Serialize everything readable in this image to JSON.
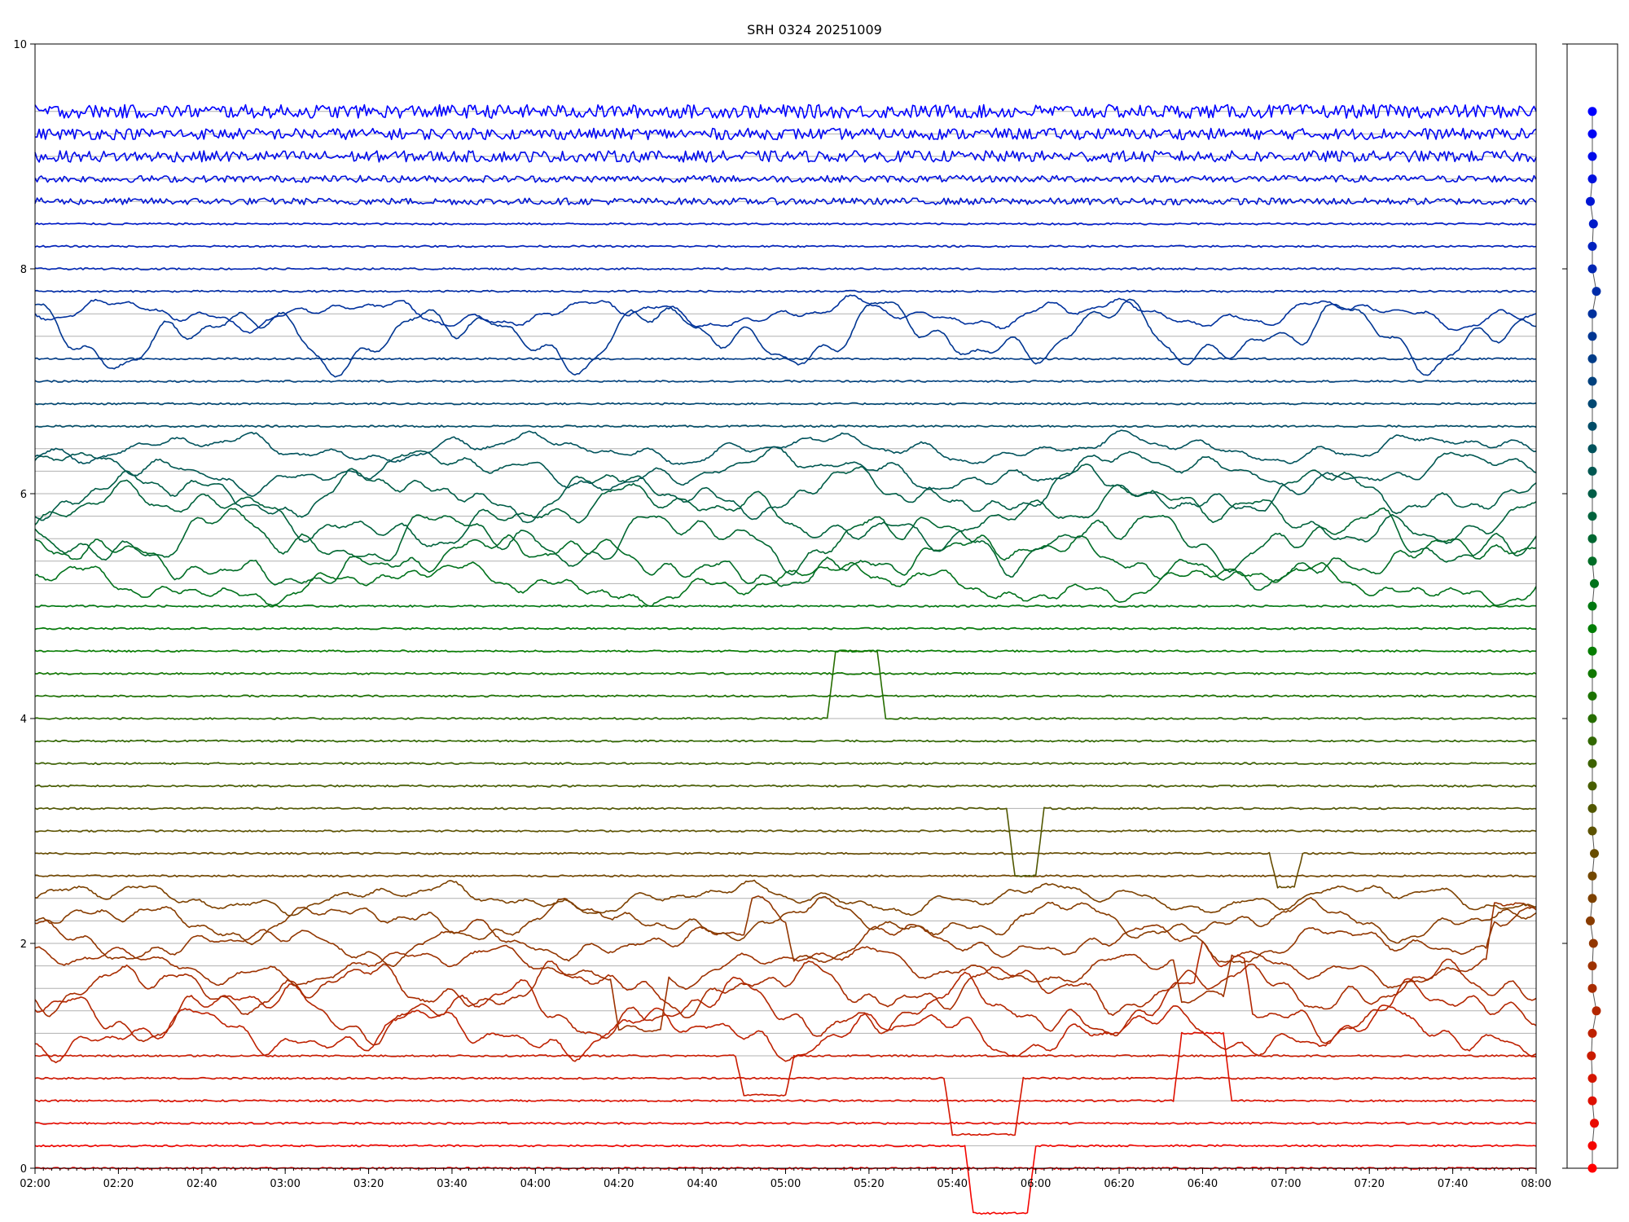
{
  "chart_data": {
    "type": "line",
    "title": "SRH 0324 20251009",
    "xlabel": "",
    "ylabel": "",
    "x_range": [
      "02:00",
      "08:00"
    ],
    "x_ticks": [
      "02:00",
      "02:20",
      "02:40",
      "03:00",
      "03:20",
      "03:40",
      "04:00",
      "04:20",
      "04:40",
      "05:00",
      "05:20",
      "05:40",
      "06:00",
      "06:20",
      "06:40",
      "07:00",
      "07:20",
      "07:40",
      "08:00"
    ],
    "ylim": [
      0,
      10
    ],
    "y_ticks": [
      0,
      2,
      4,
      6,
      8,
      10
    ],
    "grid": "horizontal",
    "channel_count": 48,
    "channel_spacing": 0.2,
    "color_start": "#ff0000",
    "color_mid": "#008000",
    "color_end": "#0000ff",
    "side_panel": {
      "type": "scatter",
      "description_source": "marker column showing per-channel offset, same y scale",
      "x_offsets": [
        0,
        0,
        0.1,
        0,
        0,
        -0.05,
        0,
        0.2,
        0,
        0,
        0.05,
        -0.1,
        0,
        0,
        0.1,
        0,
        0,
        0,
        0,
        0,
        0,
        0,
        0,
        0,
        0,
        0,
        0.1,
        0,
        0,
        0,
        0,
        0,
        0,
        0,
        0,
        0,
        0,
        0,
        0,
        0.2,
        0,
        0,
        0.05,
        -0.1,
        0,
        0,
        0,
        0
      ]
    },
    "events": [
      {
        "channel": 1,
        "start": "05:45",
        "end": "05:58",
        "depth": -0.6,
        "kind": "dip"
      },
      {
        "channel": 3,
        "start": "06:35",
        "end": "06:45",
        "depth": 0.6,
        "kind": "bump"
      },
      {
        "channel": 4,
        "start": "05:40",
        "end": "05:55",
        "depth": -0.5,
        "kind": "dip"
      },
      {
        "channel": 5,
        "start": "04:50",
        "end": "05:00",
        "depth": -0.35,
        "kind": "dip"
      },
      {
        "channel": 7,
        "start": "06:40",
        "end": "06:50",
        "depth": 0.4,
        "kind": "bump"
      },
      {
        "channel": 9,
        "start": "04:20",
        "end": "04:30",
        "depth": -0.5,
        "kind": "dip"
      },
      {
        "channel": 9,
        "start": "06:35",
        "end": "06:45",
        "depth": -0.4,
        "kind": "dip"
      },
      {
        "channel": 9,
        "start": "07:50",
        "end": "08:00",
        "depth": 0.5,
        "kind": "bump"
      },
      {
        "channel": 10,
        "start": "04:52",
        "end": "05:00",
        "depth": 0.35,
        "kind": "bump"
      },
      {
        "channel": 10,
        "start": "07:50",
        "end": "08:00",
        "depth": 0.3,
        "kind": "bump"
      },
      {
        "channel": 14,
        "start": "06:58",
        "end": "07:02",
        "depth": -0.3,
        "kind": "dip"
      },
      {
        "channel": 16,
        "start": "05:55",
        "end": "06:00",
        "depth": -0.6,
        "kind": "dip"
      },
      {
        "channel": 20,
        "start": "05:12",
        "end": "05:22",
        "depth": 0.6,
        "kind": "bump"
      }
    ],
    "active_channels": [
      {
        "channel": 6,
        "amplitude": 0.25
      },
      {
        "channel": 7,
        "amplitude": 0.3
      },
      {
        "channel": 8,
        "amplitude": 0.25
      },
      {
        "channel": 9,
        "amplitude": 0.2
      },
      {
        "channel": 10,
        "amplitude": 0.2
      },
      {
        "channel": 11,
        "amplitude": 0.2
      },
      {
        "channel": 12,
        "amplitude": 0.15
      },
      {
        "channel": 26,
        "amplitude": 0.2
      },
      {
        "channel": 27,
        "amplitude": 0.25
      },
      {
        "channel": 28,
        "amplitude": 0.3
      },
      {
        "channel": 29,
        "amplitude": 0.3
      },
      {
        "channel": 30,
        "amplitude": 0.25
      },
      {
        "channel": 31,
        "amplitude": 0.2
      },
      {
        "channel": 32,
        "amplitude": 0.15
      },
      {
        "channel": 37,
        "amplitude": 0.35
      },
      {
        "channel": 38,
        "amplitude": 0.15
      }
    ],
    "noise_channels": [
      {
        "channel": 43,
        "amplitude": 0.03
      },
      {
        "channel": 44,
        "amplitude": 0.03
      },
      {
        "channel": 45,
        "amplitude": 0.05
      },
      {
        "channel": 46,
        "amplitude": 0.05
      },
      {
        "channel": 47,
        "amplitude": 0.06
      }
    ]
  }
}
